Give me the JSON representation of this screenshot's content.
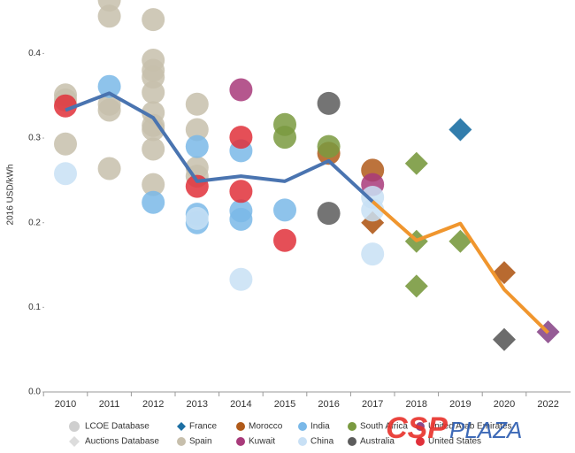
{
  "chart_data": {
    "type": "scatter",
    "y_label": "2016 USD/kWh",
    "categories": [
      "2010",
      "2011",
      "2012",
      "2013",
      "2014",
      "2015",
      "2016",
      "2017",
      "2018",
      "2019",
      "2020",
      "2022"
    ],
    "ylim": [
      0,
      0.46
    ],
    "yticks": [
      {
        "value": 0,
        "label": "0.0"
      },
      0.1,
      0.2,
      0.3,
      0.4
    ],
    "marker_legend": [
      {
        "label": "LCOE Database",
        "shape": "circle",
        "color": "#cfcfcf"
      },
      {
        "label": "Auctions Database",
        "shape": "diamond",
        "color": "#dcdcdc"
      }
    ],
    "lines": [
      {
        "color": "#4a74b0",
        "values": [
          0.333,
          0.353,
          0.324,
          0.249,
          0.255,
          0.249,
          0.273,
          0.225,
          null,
          null,
          null,
          null
        ]
      },
      {
        "color": "#f0962e",
        "values": [
          null,
          null,
          null,
          null,
          null,
          null,
          null,
          0.225,
          0.179,
          0.199,
          0.121,
          0.07
        ]
      }
    ],
    "series": [
      {
        "name": "France",
        "color": "#1c6fa3",
        "points": [
          [
            "2019",
            0.31,
            "diamond"
          ]
        ]
      },
      {
        "name": "Spain",
        "color": "#c7bfac",
        "points": [
          [
            "2010",
            0.351,
            "circle"
          ],
          [
            "2010",
            0.345,
            "circle"
          ],
          [
            "2010",
            0.293,
            "circle"
          ],
          [
            "2011",
            0.463,
            "circle"
          ],
          [
            "2011",
            0.444,
            "circle"
          ],
          [
            "2011",
            0.34,
            "circle"
          ],
          [
            "2011",
            0.333,
            "circle"
          ],
          [
            "2011",
            0.264,
            "circle"
          ],
          [
            "2012",
            0.44,
            "circle"
          ],
          [
            "2012",
            0.392,
            "circle"
          ],
          [
            "2012",
            0.38,
            "circle"
          ],
          [
            "2012",
            0.372,
            "circle"
          ],
          [
            "2012",
            0.354,
            "circle"
          ],
          [
            "2012",
            0.33,
            "circle"
          ],
          [
            "2012",
            0.315,
            "circle"
          ],
          [
            "2012",
            0.31,
            "circle"
          ],
          [
            "2012",
            0.287,
            "circle"
          ],
          [
            "2012",
            0.245,
            "circle"
          ],
          [
            "2013",
            0.34,
            "circle"
          ],
          [
            "2013",
            0.31,
            "circle"
          ],
          [
            "2013",
            0.265,
            "circle"
          ],
          [
            "2013",
            0.255,
            "circle"
          ]
        ]
      },
      {
        "name": "Morocco",
        "color": "#b05a1a",
        "points": [
          [
            "2016",
            0.282,
            "circle"
          ],
          [
            "2017",
            0.262,
            "circle"
          ],
          [
            "2017",
            0.2,
            "diamond"
          ],
          [
            "2020",
            0.141,
            "diamond"
          ]
        ]
      },
      {
        "name": "Kuwait",
        "color": "#a83a7a",
        "points": [
          [
            "2014",
            0.357,
            "circle"
          ],
          [
            "2017",
            0.245,
            "circle"
          ]
        ]
      },
      {
        "name": "India",
        "color": "#7ab8e8",
        "points": [
          [
            "2011",
            0.361,
            "circle"
          ],
          [
            "2012",
            0.224,
            "circle"
          ],
          [
            "2013",
            0.29,
            "circle"
          ],
          [
            "2013",
            0.21,
            "circle"
          ],
          [
            "2013",
            0.2,
            "circle"
          ],
          [
            "2014",
            0.285,
            "circle"
          ],
          [
            "2014",
            0.214,
            "circle"
          ],
          [
            "2014",
            0.204,
            "circle"
          ],
          [
            "2015",
            0.215,
            "circle"
          ]
        ]
      },
      {
        "name": "China",
        "color": "#c8e0f5",
        "points": [
          [
            "2010",
            0.258,
            "circle"
          ],
          [
            "2013",
            0.205,
            "circle"
          ],
          [
            "2014",
            0.133,
            "circle"
          ],
          [
            "2017",
            0.23,
            "circle"
          ],
          [
            "2017",
            0.215,
            "circle"
          ],
          [
            "2017",
            0.163,
            "circle"
          ]
        ]
      },
      {
        "name": "South Africa",
        "color": "#7a9a40",
        "points": [
          [
            "2015",
            0.316,
            "circle"
          ],
          [
            "2015",
            0.301,
            "circle"
          ],
          [
            "2016",
            0.29,
            "circle"
          ],
          [
            "2018",
            0.27,
            "diamond"
          ],
          [
            "2018",
            0.178,
            "diamond"
          ],
          [
            "2018",
            0.125,
            "diamond"
          ],
          [
            "2019",
            0.178,
            "diamond"
          ]
        ]
      },
      {
        "name": "Australia",
        "color": "#5c5c5c",
        "points": [
          [
            "2016",
            0.341,
            "circle"
          ],
          [
            "2016",
            0.211,
            "circle"
          ],
          [
            "2020",
            0.062,
            "diamond"
          ]
        ]
      },
      {
        "name": "United Arab Emirates",
        "color": "#8b4a8b",
        "points": [
          [
            "2022",
            0.071,
            "diamond"
          ]
        ]
      },
      {
        "name": "United States",
        "color": "#e0303a",
        "points": [
          [
            "2010",
            0.338,
            "circle"
          ],
          [
            "2013",
            0.243,
            "circle"
          ],
          [
            "2014",
            0.301,
            "circle"
          ],
          [
            "2014",
            0.237,
            "circle"
          ],
          [
            "2015",
            0.179,
            "circle"
          ]
        ]
      }
    ],
    "watermark": [
      "CSP",
      "PLAZA"
    ]
  }
}
